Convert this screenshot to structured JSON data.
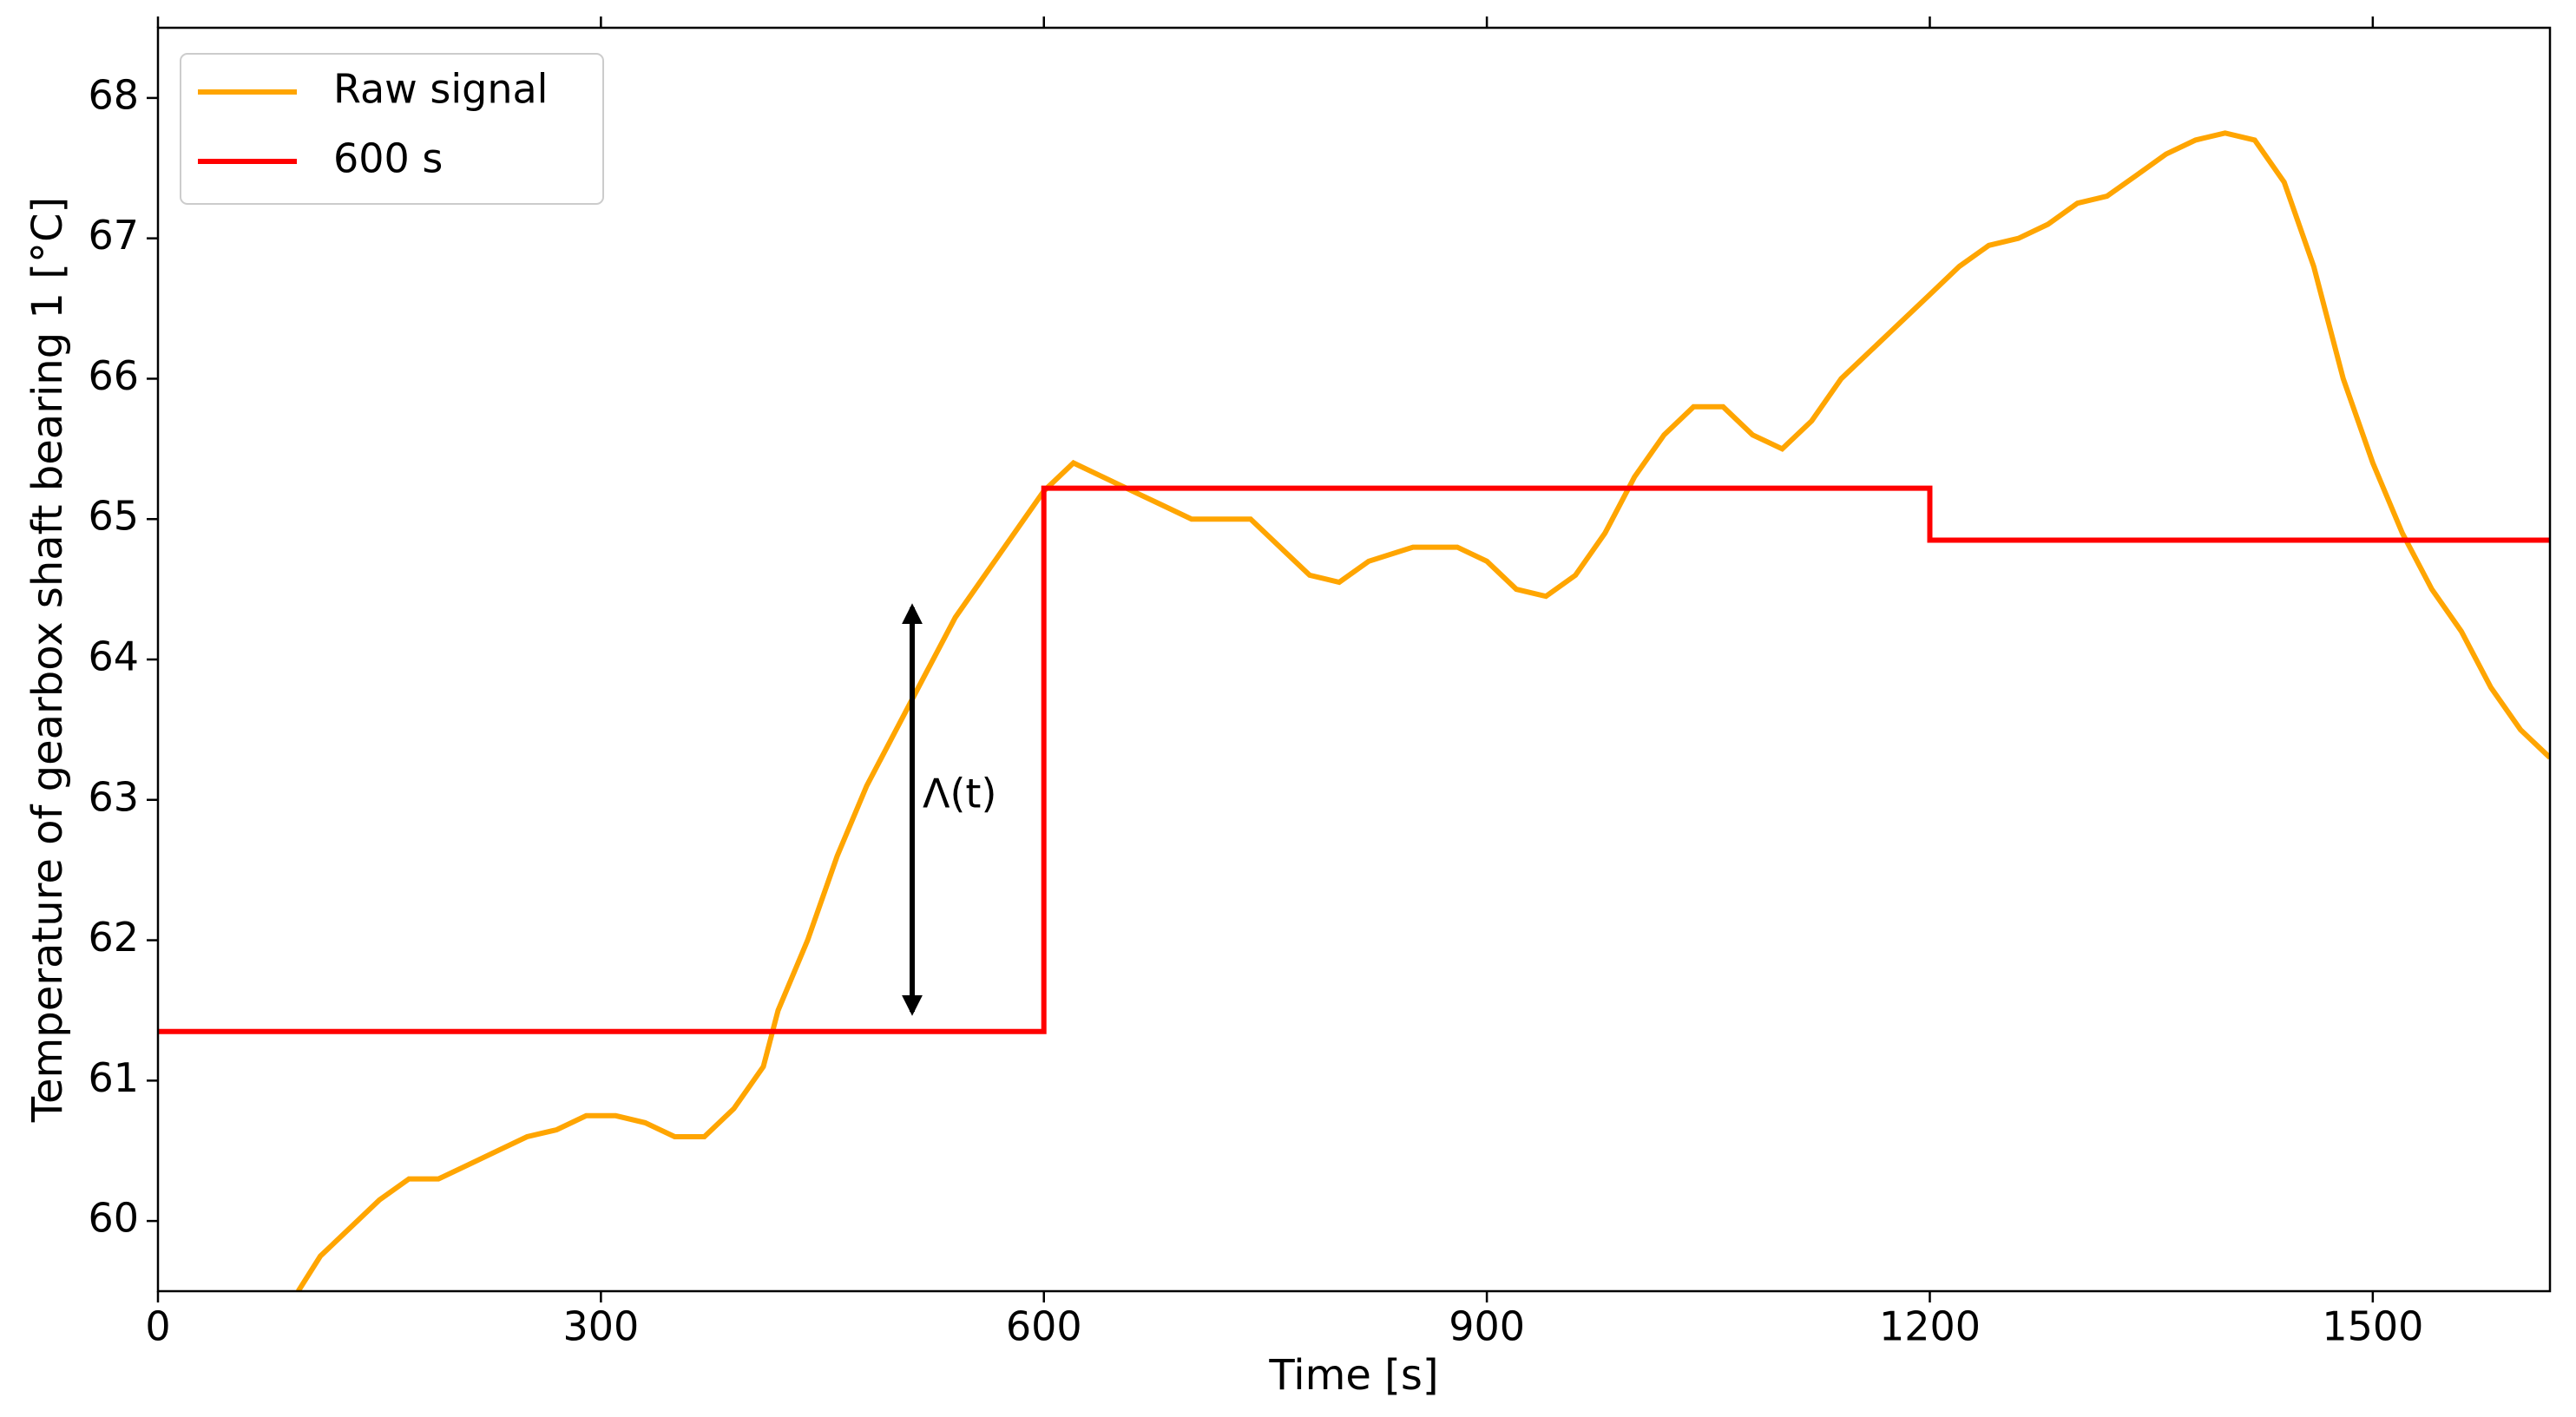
{
  "chart_data": {
    "type": "line",
    "xlabel": "Time [s]",
    "ylabel": "Temperature of gearbox shaft bearing 1 [°C]",
    "xlim": [
      0,
      1620
    ],
    "ylim": [
      59.5,
      68.5
    ],
    "xticks": [
      0,
      300,
      600,
      900,
      1200,
      1500
    ],
    "yticks": [
      60,
      61,
      62,
      63,
      64,
      65,
      66,
      67,
      68
    ],
    "legend": "upper left",
    "annotation": "Λ(t)",
    "series": [
      {
        "name": "Raw signal",
        "color": "#ffa500",
        "x": [
          95,
          110,
          130,
          150,
          170,
          190,
          210,
          230,
          250,
          270,
          290,
          310,
          330,
          350,
          370,
          390,
          410,
          420,
          440,
          460,
          480,
          500,
          520,
          540,
          560,
          580,
          600,
          620,
          640,
          660,
          680,
          700,
          740,
          760,
          780,
          800,
          820,
          850,
          880,
          900,
          920,
          940,
          960,
          980,
          1000,
          1020,
          1040,
          1060,
          1080,
          1100,
          1120,
          1140,
          1160,
          1180,
          1200,
          1220,
          1240,
          1260,
          1280,
          1300,
          1320,
          1340,
          1360,
          1380,
          1400,
          1420,
          1440,
          1460,
          1480,
          1500,
          1520,
          1540,
          1560,
          1580,
          1600,
          1620
        ],
        "values": [
          59.5,
          59.75,
          59.95,
          60.15,
          60.3,
          60.3,
          60.4,
          60.5,
          60.6,
          60.65,
          60.75,
          60.75,
          60.7,
          60.6,
          60.6,
          60.8,
          61.1,
          61.5,
          62.0,
          62.6,
          63.1,
          63.5,
          63.9,
          64.3,
          64.6,
          64.9,
          65.2,
          65.4,
          65.3,
          65.2,
          65.1,
          65.0,
          65.0,
          64.8,
          64.6,
          64.55,
          64.7,
          64.8,
          64.8,
          64.7,
          64.5,
          64.45,
          64.6,
          64.9,
          65.3,
          65.6,
          65.8,
          65.8,
          65.6,
          65.5,
          65.7,
          66.0,
          66.2,
          66.4,
          66.6,
          66.8,
          66.95,
          67.0,
          67.1,
          67.25,
          67.3,
          67.45,
          67.6,
          67.7,
          67.75,
          67.7,
          67.4,
          66.8,
          66.0,
          65.4,
          64.9,
          64.5,
          64.2,
          63.8,
          63.5,
          63.3
        ]
      },
      {
        "name": "600 s",
        "color": "#ff0000",
        "x": [
          0,
          600,
          600,
          1200,
          1200,
          1620
        ],
        "values": [
          61.35,
          61.35,
          65.22,
          65.22,
          64.85,
          64.85
        ]
      }
    ]
  }
}
